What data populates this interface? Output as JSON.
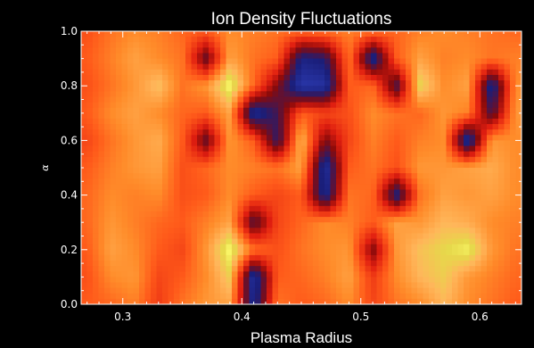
{
  "chart_data": {
    "type": "heatmap",
    "title": "Ion Density Fluctuations",
    "xlabel": "Plasma Radius",
    "ylabel": "α",
    "xlim": [
      0.265,
      0.635
    ],
    "ylim": [
      0.0,
      1.0
    ],
    "x_ticks": [
      0.3,
      0.4,
      0.5,
      0.6
    ],
    "x_tick_labels": [
      "0.3",
      "0.4",
      "0.5",
      "0.6"
    ],
    "y_ticks": [
      0.0,
      0.2,
      0.4,
      0.6,
      0.8,
      1.0
    ],
    "y_tick_labels": [
      "0.0",
      "0.2",
      "0.4",
      "0.6",
      "0.8",
      "1.0"
    ],
    "colormap": [
      "#8a0a0a",
      "#e01e10",
      "#ff5a1a",
      "#ff8c2a",
      "#ffb65a",
      "#e6d84a",
      "#ffff70",
      "#1a1e7a",
      "#2b3ab0"
    ],
    "grid": false,
    "x_values": [
      0.27,
      0.29,
      0.31,
      0.33,
      0.35,
      0.37,
      0.39,
      0.41,
      0.43,
      0.45,
      0.47,
      0.49,
      0.51,
      0.53,
      0.55,
      0.57,
      0.59,
      0.61,
      0.63
    ],
    "y_values": [
      0.0,
      0.1,
      0.2,
      0.3,
      0.4,
      0.5,
      0.6,
      0.7,
      0.8,
      0.9,
      1.0
    ],
    "z": [
      [
        0.3,
        0.35,
        0.45,
        0.15,
        0.4,
        0.55,
        0.6,
        -0.8,
        0.4,
        0.3,
        0.35,
        0.5,
        0.2,
        0.4,
        0.5,
        0.7,
        0.5,
        0.4,
        0.3
      ],
      [
        0.25,
        0.5,
        0.55,
        0.2,
        0.3,
        0.5,
        0.8,
        -0.9,
        0.3,
        0.35,
        0.45,
        0.6,
        0.15,
        0.5,
        0.7,
        0.8,
        0.55,
        0.45,
        0.35
      ],
      [
        0.3,
        0.6,
        0.5,
        0.3,
        0.2,
        0.55,
        1.0,
        0.4,
        0.25,
        0.4,
        0.5,
        0.55,
        -0.3,
        0.55,
        0.75,
        0.85,
        0.95,
        0.55,
        0.4
      ],
      [
        0.35,
        0.55,
        0.45,
        0.35,
        0.3,
        0.45,
        0.6,
        -0.5,
        0.2,
        0.35,
        0.5,
        0.45,
        0.3,
        0.6,
        0.55,
        0.7,
        0.65,
        0.5,
        0.45
      ],
      [
        0.35,
        0.5,
        0.45,
        0.5,
        0.25,
        0.3,
        0.5,
        0.3,
        0.2,
        0.3,
        -0.8,
        0.4,
        0.35,
        -0.7,
        0.4,
        0.6,
        0.55,
        0.6,
        0.5
      ],
      [
        0.3,
        0.45,
        0.55,
        0.6,
        0.25,
        0.35,
        0.5,
        0.45,
        0.4,
        0.6,
        -0.9,
        0.3,
        0.4,
        0.25,
        0.55,
        0.55,
        0.6,
        0.65,
        0.5
      ],
      [
        0.2,
        0.4,
        0.55,
        0.65,
        0.3,
        -0.4,
        0.55,
        0.3,
        -0.6,
        0.7,
        -0.3,
        0.2,
        0.45,
        0.3,
        0.45,
        0.5,
        -0.9,
        0.55,
        0.5
      ],
      [
        0.3,
        0.5,
        0.6,
        0.5,
        0.35,
        0.3,
        0.6,
        -0.85,
        -0.5,
        0.3,
        0.2,
        0.25,
        0.5,
        0.4,
        0.35,
        0.55,
        0.45,
        -0.5,
        0.55
      ],
      [
        0.25,
        0.4,
        0.55,
        0.75,
        0.4,
        0.55,
        1.0,
        0.35,
        -0.3,
        -0.95,
        -0.9,
        0.3,
        0.35,
        -0.5,
        0.85,
        0.5,
        0.6,
        -0.8,
        0.5
      ],
      [
        0.3,
        0.45,
        0.6,
        0.5,
        0.4,
        -0.4,
        0.6,
        0.4,
        0.3,
        -0.7,
        -0.6,
        0.4,
        -0.8,
        0.3,
        0.6,
        0.45,
        0.5,
        0.4,
        0.45
      ],
      [
        0.25,
        0.4,
        0.5,
        0.45,
        0.35,
        0.3,
        0.5,
        0.45,
        0.4,
        0.35,
        0.4,
        0.45,
        0.4,
        0.35,
        0.45,
        0.5,
        0.45,
        0.4,
        0.35
      ]
    ]
  }
}
